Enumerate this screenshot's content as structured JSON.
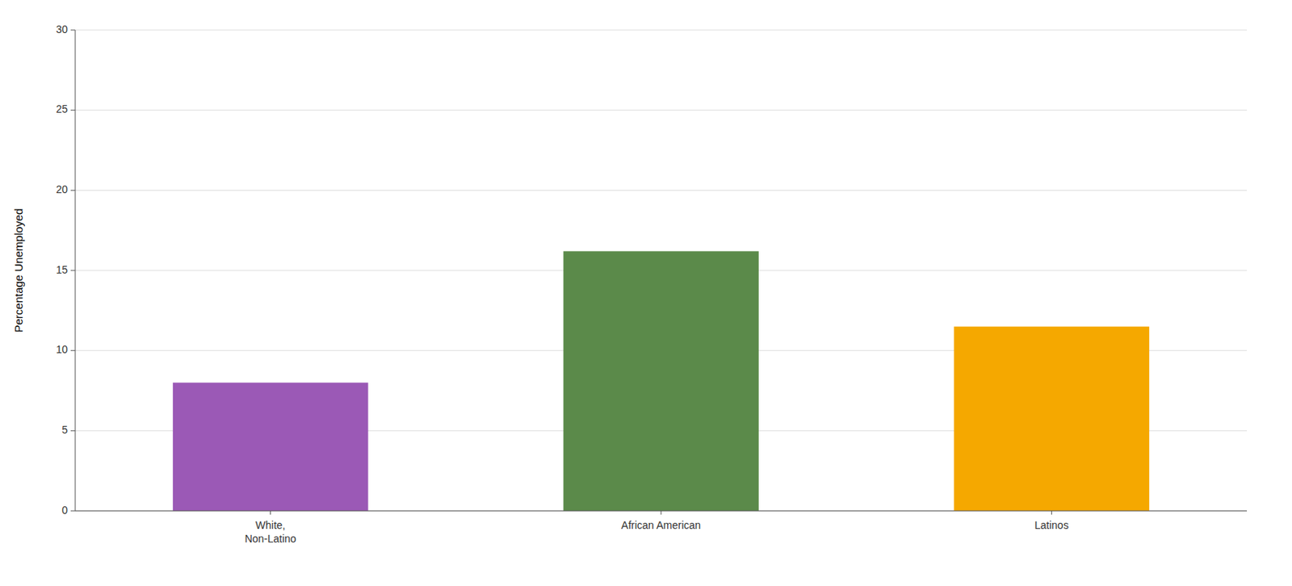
{
  "chart_data": {
    "type": "bar",
    "categories": [
      "White,\nNon-Latino",
      "African American",
      "Latinos"
    ],
    "values": [
      8.0,
      16.2,
      11.5
    ],
    "colors": [
      "#9B59B6",
      "#5B8A4A",
      "#F5A800"
    ],
    "ylabel": "Percentage Unemployed",
    "ylim": [
      0,
      30
    ],
    "yticks": [
      0,
      5,
      10,
      15,
      20,
      25,
      30
    ],
    "grid": true
  }
}
